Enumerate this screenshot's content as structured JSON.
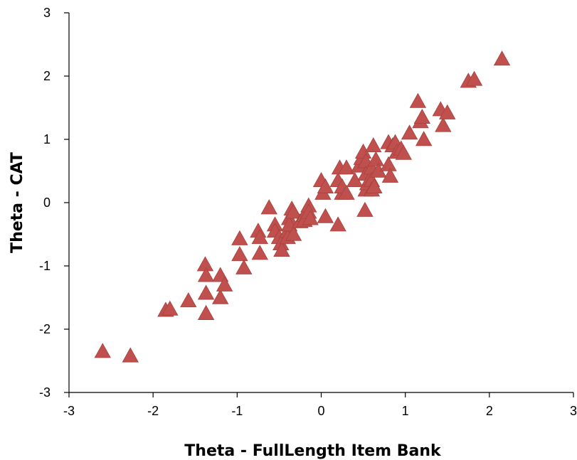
{
  "colors": {
    "marker": "#C0504D",
    "axis": "#000000",
    "background": "#FFFFFF"
  },
  "chart_data": {
    "type": "scatter",
    "title": "",
    "xlabel": "Theta - FullLength Item Bank",
    "ylabel": "Theta - CAT",
    "xlim": [
      -3,
      3
    ],
    "ylim": [
      -3,
      3
    ],
    "xticks": [
      "-3",
      "-2",
      "-1",
      "0",
      "1",
      "2",
      "3"
    ],
    "yticks": [
      "-3",
      "-2",
      "-1",
      "0",
      "1",
      "2",
      "3"
    ],
    "grid": false,
    "legend": "none",
    "marker": "triangle",
    "series": [
      {
        "points": [
          [
            -2.6,
            -2.35
          ],
          [
            -2.27,
            -2.42
          ],
          [
            -1.85,
            -1.7
          ],
          [
            -1.8,
            -1.68
          ],
          [
            -1.58,
            -1.55
          ],
          [
            -1.38,
            -0.98
          ],
          [
            -1.37,
            -1.15
          ],
          [
            -1.37,
            -1.43
          ],
          [
            -1.37,
            -1.75
          ],
          [
            -1.2,
            -1.15
          ],
          [
            -1.2,
            -1.5
          ],
          [
            -1.15,
            -1.3
          ],
          [
            -0.97,
            -0.57
          ],
          [
            -0.97,
            -0.82
          ],
          [
            -0.92,
            -1.03
          ],
          [
            -0.75,
            -0.45
          ],
          [
            -0.73,
            -0.55
          ],
          [
            -0.73,
            -0.8
          ],
          [
            -0.62,
            -0.08
          ],
          [
            -0.55,
            -0.35
          ],
          [
            -0.55,
            -0.45
          ],
          [
            -0.5,
            -0.55
          ],
          [
            -0.48,
            -0.65
          ],
          [
            -0.47,
            -0.75
          ],
          [
            -0.4,
            -0.45
          ],
          [
            -0.4,
            -0.55
          ],
          [
            -0.38,
            -0.25
          ],
          [
            -0.38,
            -0.35
          ],
          [
            -0.35,
            -0.1
          ],
          [
            -0.33,
            -0.15
          ],
          [
            -0.33,
            -0.5
          ],
          [
            -0.25,
            -0.3
          ],
          [
            -0.2,
            -0.2
          ],
          [
            -0.2,
            -0.28
          ],
          [
            -0.15,
            -0.05
          ],
          [
            -0.15,
            -0.15
          ],
          [
            -0.13,
            -0.25
          ],
          [
            0.0,
            0.35
          ],
          [
            0.02,
            0.15
          ],
          [
            0.05,
            0.25
          ],
          [
            0.05,
            -0.22
          ],
          [
            0.2,
            0.35
          ],
          [
            0.2,
            -0.35
          ],
          [
            0.22,
            0.55
          ],
          [
            0.25,
            0.15
          ],
          [
            0.25,
            0.25
          ],
          [
            0.3,
            0.55
          ],
          [
            0.3,
            0.15
          ],
          [
            0.4,
            0.35
          ],
          [
            0.45,
            0.58
          ],
          [
            0.48,
            0.7
          ],
          [
            0.5,
            0.8
          ],
          [
            0.53,
            0.65
          ],
          [
            0.53,
            0.45
          ],
          [
            0.53,
            0.2
          ],
          [
            0.52,
            -0.12
          ],
          [
            0.55,
            0.3
          ],
          [
            0.58,
            0.38
          ],
          [
            0.6,
            0.55
          ],
          [
            0.6,
            0.35
          ],
          [
            0.6,
            0.2
          ],
          [
            0.62,
            0.9
          ],
          [
            0.63,
            0.25
          ],
          [
            0.65,
            0.68
          ],
          [
            0.68,
            0.5
          ],
          [
            0.8,
            0.95
          ],
          [
            0.8,
            0.6
          ],
          [
            0.82,
            0.42
          ],
          [
            0.85,
            0.9
          ],
          [
            0.88,
            0.95
          ],
          [
            0.9,
            0.8
          ],
          [
            0.95,
            0.85
          ],
          [
            0.98,
            0.78
          ],
          [
            1.05,
            1.1
          ],
          [
            1.15,
            1.6
          ],
          [
            1.18,
            1.28
          ],
          [
            1.2,
            1.35
          ],
          [
            1.22,
            1.0
          ],
          [
            1.42,
            1.47
          ],
          [
            1.45,
            1.22
          ],
          [
            1.5,
            1.42
          ],
          [
            1.75,
            1.92
          ],
          [
            1.82,
            1.95
          ],
          [
            2.15,
            2.27
          ]
        ]
      }
    ]
  }
}
